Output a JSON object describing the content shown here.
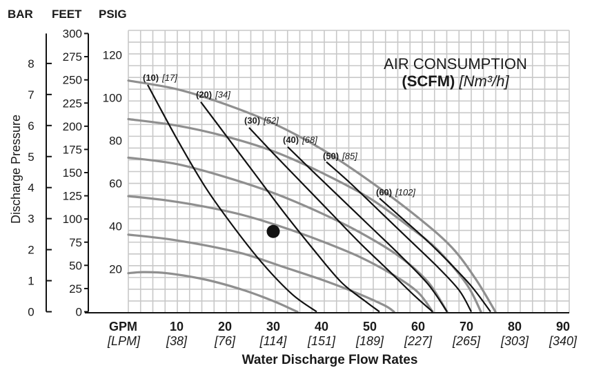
{
  "chart_data": {
    "type": "line",
    "title": "AIR CONSUMPTION",
    "subtitle_bold": "(SCFM)",
    "subtitle_italic": "[Nm³/h]",
    "xlabel": "Water Discharge Flow Rates",
    "ylabel": "Discharge Pressure",
    "x_unit_primary": "GPM",
    "x_unit_secondary": "[LPM]",
    "xlim": [
      0,
      90
    ],
    "ylim": [
      0,
      130
    ],
    "x_ticks": [
      {
        "v": 10,
        "label": "10",
        "sub": "[38]"
      },
      {
        "v": 20,
        "label": "20",
        "sub": "[76]"
      },
      {
        "v": 30,
        "label": "30",
        "sub": "[114]"
      },
      {
        "v": 40,
        "label": "40",
        "sub": "[151]"
      },
      {
        "v": 50,
        "label": "50",
        "sub": "[189]"
      },
      {
        "v": 60,
        "label": "60",
        "sub": "[227]"
      },
      {
        "v": 70,
        "label": "70",
        "sub": "[265]"
      },
      {
        "v": 80,
        "label": "80",
        "sub": "[303]"
      },
      {
        "v": 90,
        "label": "90",
        "sub": "[340]"
      }
    ],
    "axes": [
      {
        "name": "BAR",
        "ticks": [
          "0",
          "1",
          "2",
          "3",
          "4",
          "5",
          "6",
          "7",
          "8"
        ],
        "values": [
          0,
          14.5,
          29,
          43.5,
          58,
          72.5,
          87,
          101.5,
          116
        ]
      },
      {
        "name": "FEET",
        "ticks": [
          "0",
          "25",
          "50",
          "75",
          "100",
          "125",
          "150",
          "175",
          "200",
          "225",
          "250",
          "275",
          "300"
        ],
        "values": [
          0,
          10.83,
          21.67,
          32.5,
          43.33,
          54.17,
          65,
          75.83,
          86.67,
          97.5,
          108.33,
          119.17,
          130
        ]
      },
      {
        "name": "PSIG",
        "ticks": [
          "20",
          "40",
          "60",
          "80",
          "100",
          "120"
        ],
        "values": [
          20,
          40,
          60,
          80,
          100,
          120
        ]
      }
    ],
    "pressure_curves": [
      {
        "x": [
          0,
          3,
          8,
          16,
          24,
          30,
          34,
          35
        ],
        "y": [
          18,
          18.5,
          18,
          15,
          10,
          5,
          1,
          0
        ]
      },
      {
        "x": [
          0,
          8,
          16,
          24,
          32,
          40,
          47,
          53,
          55
        ],
        "y": [
          36,
          34,
          31,
          27,
          21,
          15,
          9,
          3,
          0
        ]
      },
      {
        "x": [
          0,
          8,
          16,
          24,
          32,
          40,
          48,
          55,
          60,
          63
        ],
        "y": [
          54,
          52,
          49,
          45,
          39.5,
          33,
          25.5,
          17,
          9,
          0
        ]
      },
      {
        "x": [
          0,
          10,
          20,
          30,
          40,
          48,
          56,
          62,
          66
        ],
        "y": [
          72,
          69,
          63,
          55.5,
          46,
          37,
          26,
          14,
          0
        ]
      },
      {
        "x": [
          0,
          10,
          20,
          30,
          40,
          50,
          58,
          64,
          70,
          73
        ],
        "y": [
          90,
          87,
          82,
          75,
          65,
          53,
          40,
          29,
          13,
          0
        ]
      },
      {
        "x": [
          0,
          10,
          20,
          30,
          40,
          50,
          60,
          67,
          72,
          76
        ],
        "y": [
          108,
          104,
          97,
          88,
          76,
          61,
          44,
          30,
          15,
          0
        ]
      }
    ],
    "air_curves": [
      {
        "label": "(10)",
        "sub": "[17]",
        "x": [
          4,
          10,
          16,
          22,
          28,
          34,
          39
        ],
        "y": [
          106,
          81,
          58,
          39,
          22,
          8,
          0
        ]
      },
      {
        "label": "(20)",
        "sub": "[34]",
        "x": [
          15,
          20,
          26,
          32,
          38,
          44,
          49,
          52
        ],
        "y": [
          98,
          83,
          65,
          47,
          30,
          14,
          5,
          0
        ]
      },
      {
        "label": "(30)",
        "sub": "[52]",
        "x": [
          25,
          30,
          36,
          42,
          48,
          54,
          59,
          63
        ],
        "y": [
          86,
          74,
          60,
          46,
          32,
          19,
          8,
          0
        ]
      },
      {
        "label": "(40)",
        "sub": "[68]",
        "x": [
          33,
          38,
          44,
          50,
          56,
          62,
          66
        ],
        "y": [
          77,
          66,
          53,
          40,
          27,
          13,
          0
        ]
      },
      {
        "label": "(50)",
        "sub": "[85]",
        "x": [
          41,
          46,
          52,
          58,
          64,
          68.5,
          71
        ],
        "y": [
          70,
          60,
          47,
          34,
          21,
          10,
          0
        ]
      },
      {
        "label": "(60)",
        "sub": "[102]",
        "x": [
          52,
          56,
          61,
          66,
          71,
          75
        ],
        "y": [
          53,
          45,
          35,
          24,
          12,
          0
        ]
      }
    ],
    "marker_point": {
      "x": 30,
      "y": 37.5
    },
    "grid": true
  }
}
